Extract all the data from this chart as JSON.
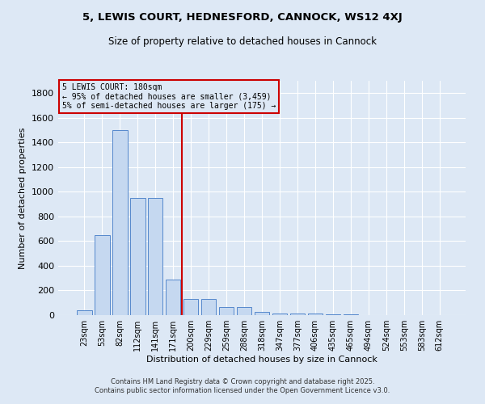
{
  "title": "5, LEWIS COURT, HEDNESFORD, CANNOCK, WS12 4XJ",
  "subtitle": "Size of property relative to detached houses in Cannock",
  "xlabel": "Distribution of detached houses by size in Cannock",
  "ylabel": "Number of detached properties",
  "categories": [
    "23sqm",
    "53sqm",
    "82sqm",
    "112sqm",
    "141sqm",
    "171sqm",
    "200sqm",
    "229sqm",
    "259sqm",
    "288sqm",
    "318sqm",
    "347sqm",
    "377sqm",
    "406sqm",
    "435sqm",
    "465sqm",
    "494sqm",
    "524sqm",
    "553sqm",
    "583sqm",
    "612sqm"
  ],
  "values": [
    40,
    650,
    1500,
    950,
    950,
    290,
    130,
    130,
    65,
    65,
    25,
    10,
    10,
    10,
    5,
    5,
    0,
    0,
    0,
    0,
    0
  ],
  "bar_color": "#c5d8f0",
  "bar_edge_color": "#5588cc",
  "bg_color": "#dde8f5",
  "grid_color": "#ffffff",
  "vline_color": "#cc0000",
  "vline_index": 6,
  "annotation_text": "5 LEWIS COURT: 180sqm\n← 95% of detached houses are smaller (3,459)\n5% of semi-detached houses are larger (175) →",
  "annotation_box_color": "#cc0000",
  "ylim": [
    0,
    1900
  ],
  "yticks": [
    0,
    200,
    400,
    600,
    800,
    1000,
    1200,
    1400,
    1600,
    1800
  ],
  "footer_line1": "Contains HM Land Registry data © Crown copyright and database right 2025.",
  "footer_line2": "Contains public sector information licensed under the Open Government Licence v3.0."
}
